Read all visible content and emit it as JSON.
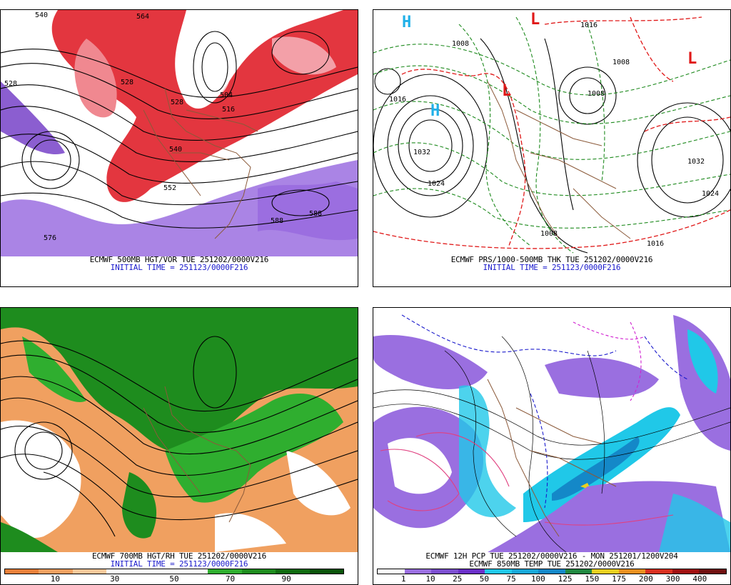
{
  "panels": {
    "p1": {
      "caption_line1": "ECMWF 500MB HGT/VOR TUE 251202/0000V216",
      "caption_line2": "INITIAL TIME = 251123/0000F216",
      "contour_labels": [
        "540",
        "564",
        "528",
        "504",
        "516",
        "528",
        "540",
        "552",
        "576",
        "588",
        "588",
        "528"
      ]
    },
    "p2": {
      "caption_line1": "ECMWF PRS/1000-500MB THK TUE 251202/0000V216",
      "caption_line2": "INITIAL TIME = 251123/0000F216",
      "contour_labels": [
        "1032",
        "1024",
        "1016",
        "1008",
        "1008",
        "1008",
        "1016",
        "1032",
        "1024",
        "1008",
        "1016"
      ],
      "pressure_centers": [
        "H",
        "H",
        "L",
        "L",
        "L"
      ]
    },
    "p3": {
      "caption_line1": "ECMWF 700MB HGT/RH TUE 251202/0000V216",
      "caption_line2": "INITIAL TIME = 251123/0000F216",
      "legend": {
        "ticks": [
          "10",
          "30",
          "50",
          "70",
          "90"
        ],
        "colors": [
          "#e8803a",
          "#f0a060",
          "#f8c89a",
          "#ffffff",
          "#ffffff",
          "#ffffff",
          "#2fae2f",
          "#1e8c1e",
          "#0f6b0f",
          "#0a540a"
        ]
      }
    },
    "p4": {
      "caption_line1": "ECMWF 12H PCP TUE 251202/0000V216 - MON 251201/1200V204",
      "caption_line2": "ECMWF 850MB TEMP TUE 251202/0000V216",
      "legend": {
        "ticks": [
          "1",
          "10",
          "25",
          "50",
          "75",
          "100",
          "125",
          "150",
          "175",
          "200",
          "300",
          "400"
        ],
        "colors": [
          "#ffffff",
          "#9a6fe0",
          "#7c4fd0",
          "#6a2fc8",
          "#20c8e8",
          "#18a8d8",
          "#1488c8",
          "#208840",
          "#e8d020",
          "#e89020",
          "#d83020",
          "#a01010",
          "#701010"
        ]
      }
    }
  }
}
